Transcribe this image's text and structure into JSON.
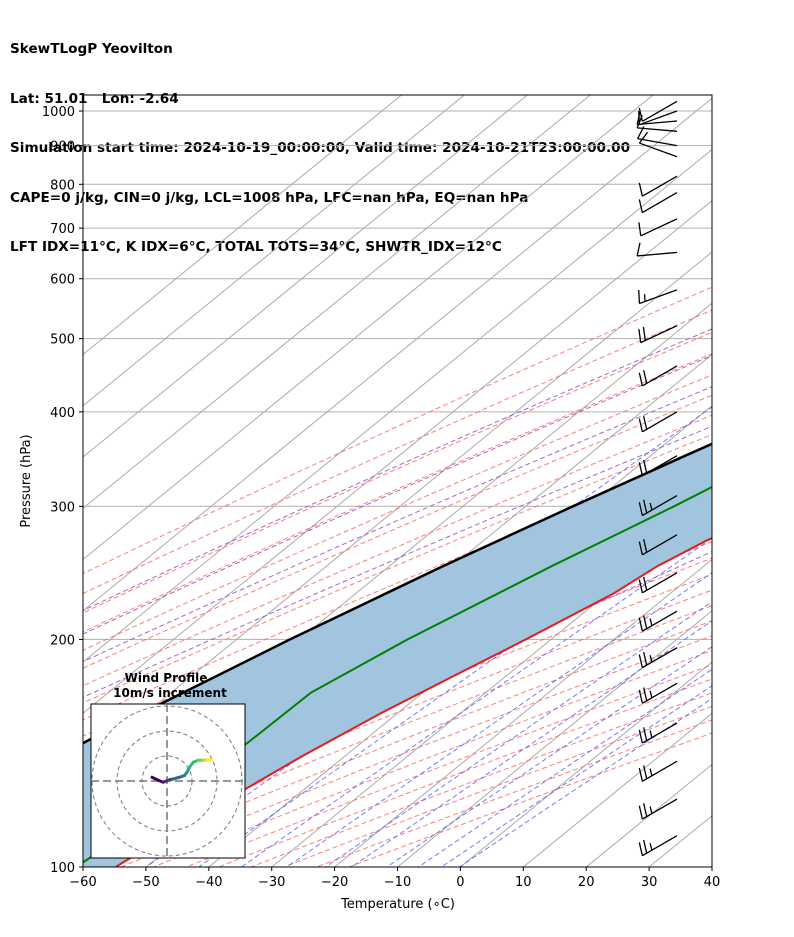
{
  "header": {
    "line1": "SkewTLogP Yeovilton",
    "line2": "Lat: 51.01   Lon: -2.64",
    "line3": "Simulation start time: 2024-10-19_00:00:00, Valid time: 2024-10-21T23:00:00.00",
    "line4": "CAPE=0 j/kg, CIN=0 j/kg, LCL=1008 hPa, LFC=nan hPa, EQ=nan hPa",
    "line5": "LFT IDX=11°C, K IDX=6°C, TOTAL TOTS=34°C, SHWTR_IDX=12°C"
  },
  "colors": {
    "temperature": "#e41a1c",
    "dewpoint": "#008000",
    "parcel": "#000000",
    "shade": "#a1c4df",
    "dry_adiabat": "#ff6666",
    "moist_adiabat": "#9040c0",
    "mixing_ratio": "#4d5bff",
    "isotherm": "#aaaaaa"
  },
  "chart_data": {
    "type": "skew-t",
    "xlabel": "Temperature (∘C)",
    "ylabel": "Pressure (hPa)",
    "xlim": [
      -60,
      40
    ],
    "ylim": [
      1050,
      100
    ],
    "x_ticks": [
      "−60",
      "−50",
      "−40",
      "−30",
      "−20",
      "−10",
      "0",
      "10",
      "20",
      "30",
      "40"
    ],
    "y_ticks": [
      "1000",
      "900",
      "800",
      "700",
      "600",
      "500",
      "400",
      "300",
      "200",
      "100"
    ],
    "y_tick_values": [
      1000,
      900,
      800,
      700,
      600,
      500,
      400,
      300,
      200,
      100
    ],
    "temperature_profile": [
      [
        1045,
        10
      ],
      [
        1010,
        12.3
      ],
      [
        990,
        12.4
      ],
      [
        950,
        11.1
      ],
      [
        900,
        9.5
      ],
      [
        850,
        8.2
      ],
      [
        800,
        7.0
      ],
      [
        750,
        5.6
      ],
      [
        700,
        4.2
      ],
      [
        650,
        4.0
      ],
      [
        600,
        4.2
      ],
      [
        550,
        3.0
      ],
      [
        500,
        0.3
      ],
      [
        450,
        -3.1
      ],
      [
        400,
        -7.5
      ],
      [
        350,
        -13.0
      ],
      [
        300,
        -19.5
      ],
      [
        270,
        -24.6
      ],
      [
        250,
        -27.4
      ],
      [
        230,
        -29.0
      ],
      [
        200,
        -34.0
      ],
      [
        180,
        -38.1
      ],
      [
        160,
        -42.6
      ],
      [
        140,
        -46.8
      ],
      [
        120,
        -50.8
      ],
      [
        110,
        -52.8
      ],
      [
        100,
        -54.8
      ]
    ],
    "dewpoint_profile": [
      [
        1045,
        8.5
      ],
      [
        1010,
        5
      ],
      [
        990,
        1.2
      ],
      [
        950,
        -3.2
      ],
      [
        900,
        -7.5
      ],
      [
        850,
        -8.5
      ],
      [
        800,
        -5.8
      ],
      [
        750,
        -6.1
      ],
      [
        700,
        -8.5
      ],
      [
        650,
        -11.5
      ],
      [
        600,
        -24.0
      ],
      [
        550,
        -19.2
      ],
      [
        500,
        -15.0
      ],
      [
        450,
        -14.0
      ],
      [
        400,
        -20.5
      ],
      [
        350,
        -30.5
      ],
      [
        300,
        -36.4
      ],
      [
        250,
        -44.2
      ],
      [
        200,
        -52.8
      ],
      [
        170,
        -57.8
      ],
      [
        150,
        -58.0
      ],
      [
        120,
        -58.6
      ],
      [
        100,
        -61.1
      ]
    ],
    "parcel_profile": [
      [
        1045,
        8.5
      ],
      [
        1000,
        6.7
      ],
      [
        950,
        4.7
      ],
      [
        900,
        2.8
      ],
      [
        850,
        0.6
      ],
      [
        800,
        -1.7
      ],
      [
        750,
        -4.5
      ],
      [
        700,
        -7.5
      ],
      [
        650,
        -11.3
      ],
      [
        600,
        -15.4
      ],
      [
        550,
        -20.0
      ],
      [
        500,
        -25.0
      ],
      [
        450,
        -30.9
      ],
      [
        400,
        -37.3
      ],
      [
        350,
        -44.5
      ],
      [
        300,
        -52.5
      ],
      [
        250,
        -61.5
      ],
      [
        200,
        -71.5
      ],
      [
        150,
        -83.2
      ],
      [
        100,
        -97.0
      ]
    ],
    "wind_barbs": [
      {
        "p": 1030,
        "speed_kt": 10,
        "dir": 240
      },
      {
        "p": 1000,
        "speed_kt": 10,
        "dir": 250
      },
      {
        "p": 970,
        "speed_kt": 10,
        "dir": 265
      },
      {
        "p": 940,
        "speed_kt": 10,
        "dir": 275
      },
      {
        "p": 900,
        "speed_kt": 10,
        "dir": 280
      },
      {
        "p": 870,
        "speed_kt": 10,
        "dir": 290
      },
      {
        "p": 820,
        "speed_kt": 10,
        "dir": 240
      },
      {
        "p": 780,
        "speed_kt": 10,
        "dir": 240
      },
      {
        "p": 720,
        "speed_kt": 10,
        "dir": 245
      },
      {
        "p": 650,
        "speed_kt": 10,
        "dir": 265
      },
      {
        "p": 580,
        "speed_kt": 15,
        "dir": 250
      },
      {
        "p": 520,
        "speed_kt": 20,
        "dir": 245
      },
      {
        "p": 460,
        "speed_kt": 20,
        "dir": 240
      },
      {
        "p": 400,
        "speed_kt": 20,
        "dir": 240
      },
      {
        "p": 350,
        "speed_kt": 20,
        "dir": 240
      },
      {
        "p": 310,
        "speed_kt": 25,
        "dir": 240
      },
      {
        "p": 275,
        "speed_kt": 20,
        "dir": 240
      },
      {
        "p": 245,
        "speed_kt": 20,
        "dir": 240
      },
      {
        "p": 218,
        "speed_kt": 25,
        "dir": 240
      },
      {
        "p": 195,
        "speed_kt": 25,
        "dir": 240
      },
      {
        "p": 175,
        "speed_kt": 25,
        "dir": 240
      },
      {
        "p": 155,
        "speed_kt": 25,
        "dir": 240
      },
      {
        "p": 138,
        "speed_kt": 25,
        "dir": 240
      },
      {
        "p": 123,
        "speed_kt": 25,
        "dir": 240
      },
      {
        "p": 110,
        "speed_kt": 25,
        "dir": 240
      }
    ],
    "hodograph": {
      "title": "Wind Profile",
      "subtitle": "10m/s increment",
      "points": [
        [
          -6.0,
          1.5
        ],
        [
          -3.5,
          0.3
        ],
        [
          -1.5,
          -0.5
        ],
        [
          1.0,
          0.5
        ],
        [
          2.5,
          0.8
        ],
        [
          5.0,
          1.5
        ],
        [
          7.0,
          2.2
        ],
        [
          8.0,
          3.5
        ],
        [
          9.0,
          5.5
        ],
        [
          10.5,
          7.5
        ],
        [
          12.5,
          8.3
        ],
        [
          14.5,
          8.3
        ],
        [
          16.0,
          8.4
        ],
        [
          17.8,
          8.5
        ]
      ]
    }
  }
}
